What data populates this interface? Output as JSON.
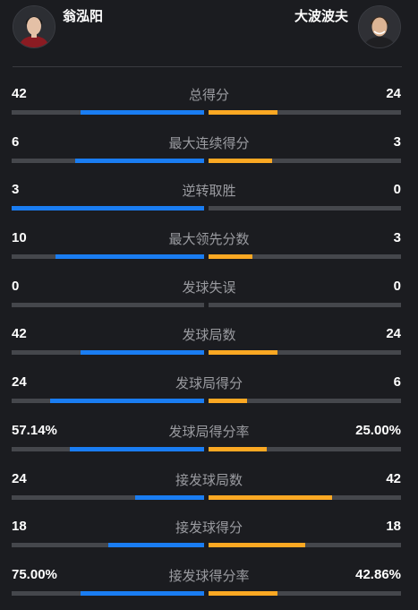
{
  "players": {
    "left": {
      "name": "翁泓阳",
      "bar_color": "#1a7df2"
    },
    "right": {
      "name": "大波波夫",
      "bar_color": "#fba823"
    }
  },
  "stats": [
    {
      "label": "总得分",
      "left": "42",
      "right": "24",
      "left_share": 0.64,
      "right_share": 0.36
    },
    {
      "label": "最大连续得分",
      "left": "6",
      "right": "3",
      "left_share": 0.67,
      "right_share": 0.33
    },
    {
      "label": "逆转取胜",
      "left": "3",
      "right": "0",
      "left_share": 1.0,
      "right_share": 0.0
    },
    {
      "label": "最大领先分数",
      "left": "10",
      "right": "3",
      "left_share": 0.77,
      "right_share": 0.23
    },
    {
      "label": "发球失误",
      "left": "0",
      "right": "0",
      "left_share": 0.0,
      "right_share": 0.0
    },
    {
      "label": "发球局数",
      "left": "42",
      "right": "24",
      "left_share": 0.64,
      "right_share": 0.36
    },
    {
      "label": "发球局得分",
      "left": "24",
      "right": "6",
      "left_share": 0.8,
      "right_share": 0.2
    },
    {
      "label": "发球局得分率",
      "left": "57.14%",
      "right": "25.00%",
      "left_share": 0.7,
      "right_share": 0.3
    },
    {
      "label": "接发球局数",
      "left": "24",
      "right": "42",
      "left_share": 0.36,
      "right_share": 0.64
    },
    {
      "label": "接发球得分",
      "left": "18",
      "right": "18",
      "left_share": 0.5,
      "right_share": 0.5
    },
    {
      "label": "接发球得分率",
      "left": "75.00%",
      "right": "42.86%",
      "left_share": 0.64,
      "right_share": 0.36
    }
  ]
}
